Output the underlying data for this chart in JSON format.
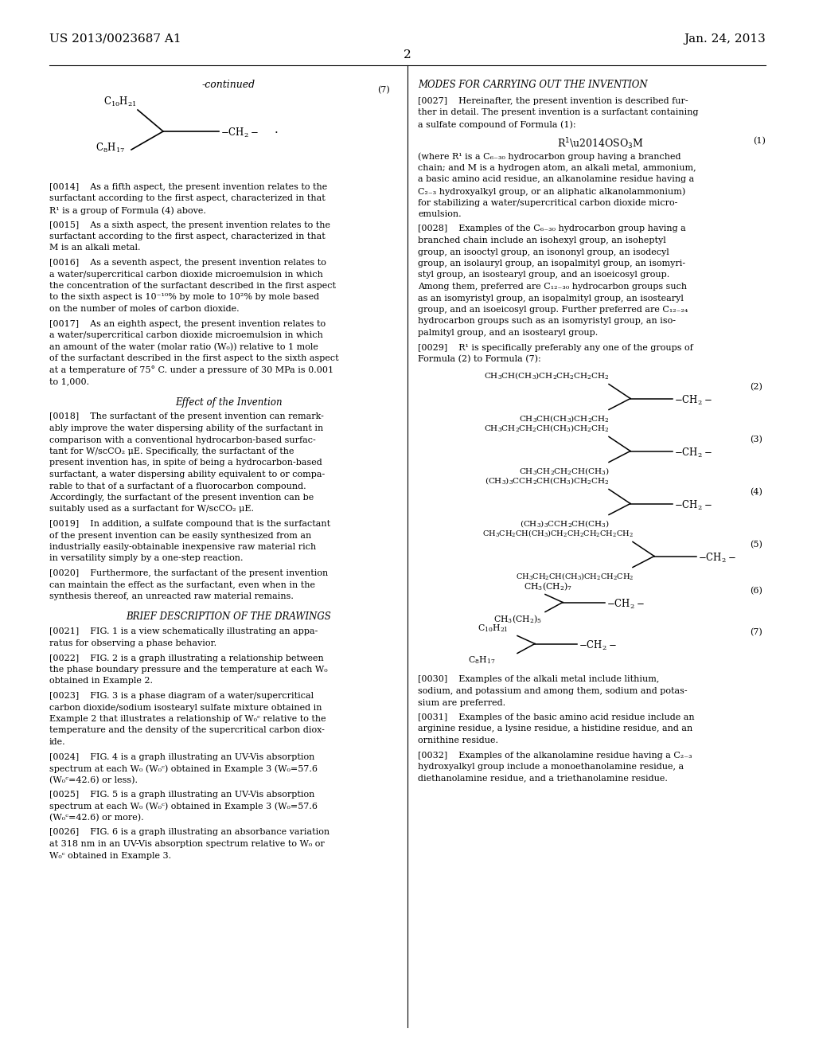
{
  "bg_color": "#ffffff",
  "header_left": "US 2013/0023687 A1",
  "header_right": "Jan. 24, 2013",
  "page_number": "2"
}
